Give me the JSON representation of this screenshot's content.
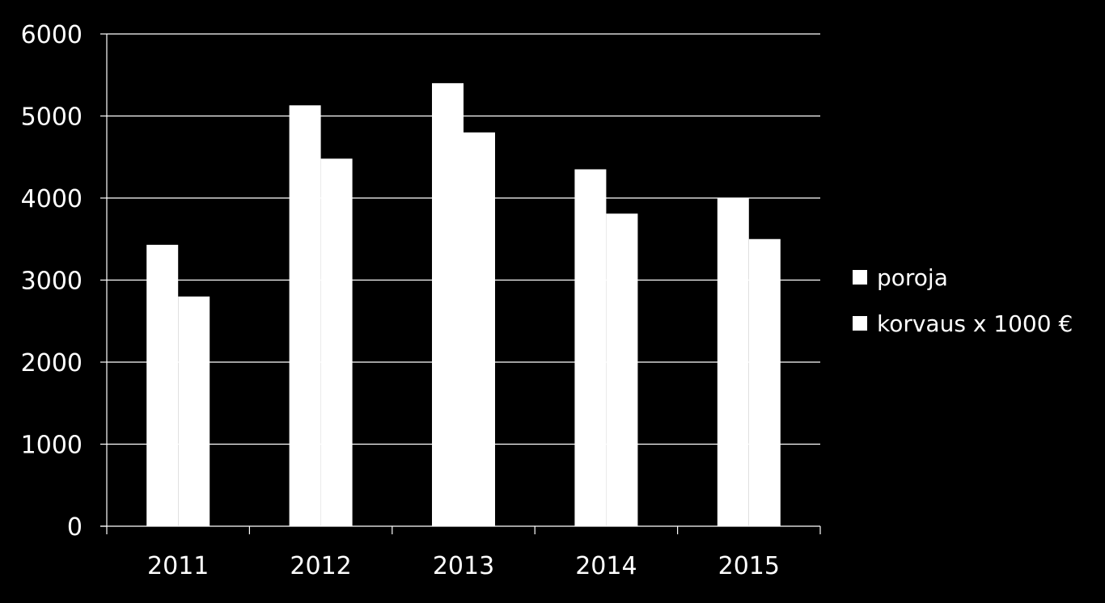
{
  "chart_data": {
    "type": "bar",
    "categories": [
      "2011",
      "2012",
      "2013",
      "2014",
      "2015"
    ],
    "series": [
      {
        "name": "poroja",
        "values": [
          3430,
          5130,
          5400,
          4350,
          4000
        ],
        "color": "#ffffff"
      },
      {
        "name": "korvaus x 1000 €",
        "values": [
          2800,
          4480,
          4800,
          3810,
          3500
        ],
        "color": "#ffffff"
      }
    ],
    "y_ticks": [
      "0",
      "1000",
      "2000",
      "3000",
      "4000",
      "5000",
      "6000"
    ],
    "ylim": [
      0,
      6000
    ],
    "grid": true,
    "legend_position": "right",
    "background": "#000000",
    "foreground": "#ffffff"
  }
}
